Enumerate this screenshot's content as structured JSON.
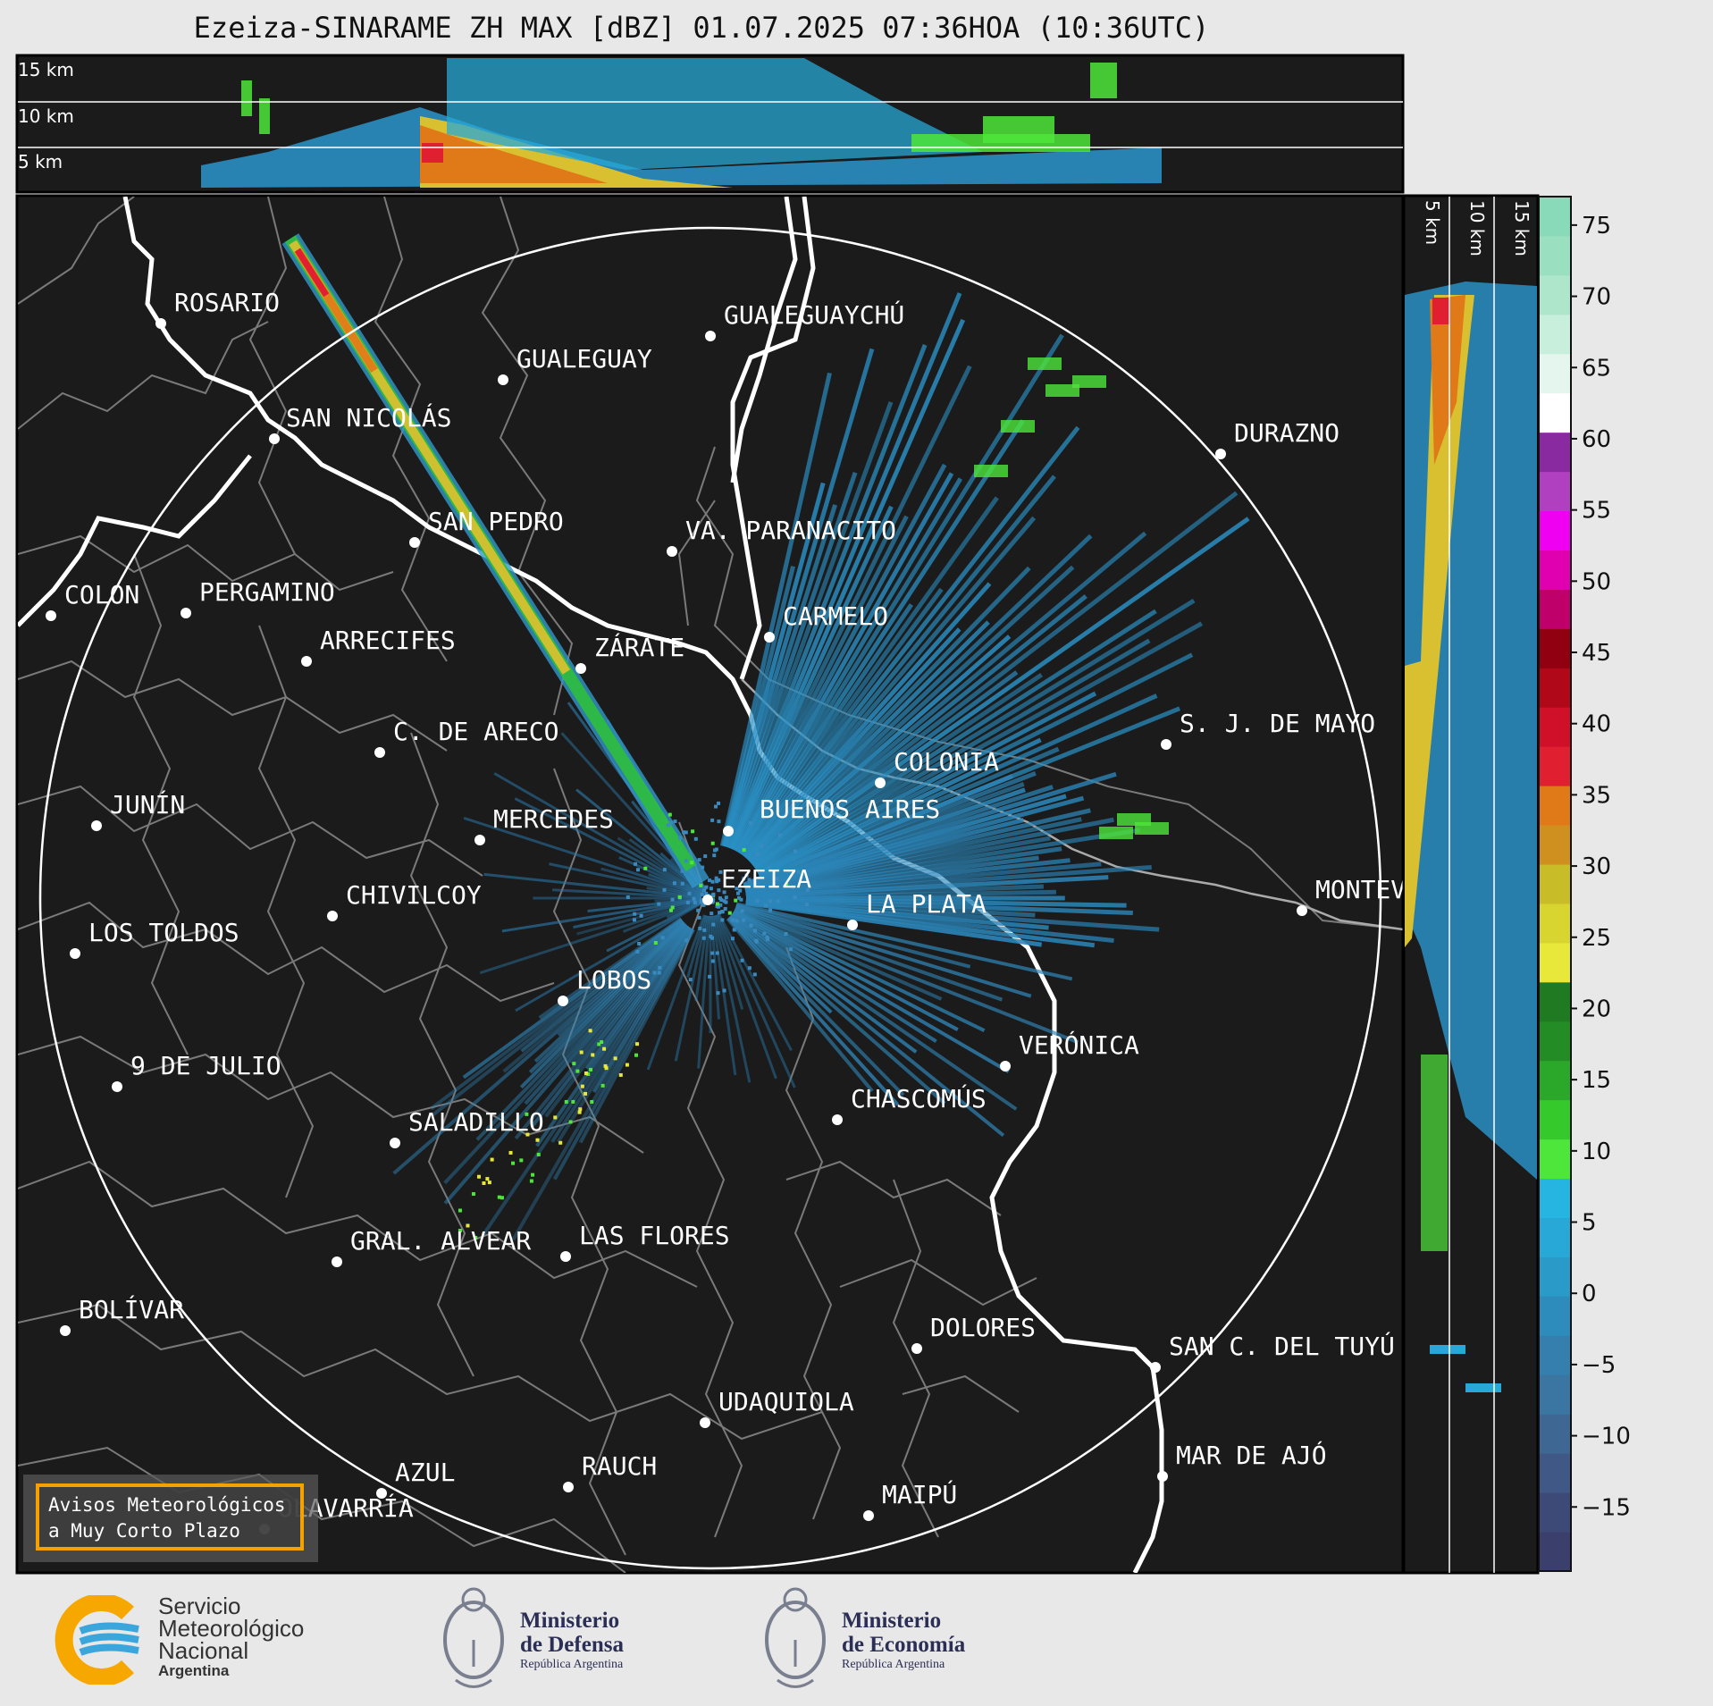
{
  "title": "Ezeiza-SINARAME ZH MAX [dBZ] 01.07.2025 07:36HOA (10:36UTC)",
  "height_labels": [
    "15 km",
    "10 km",
    "5 km"
  ],
  "side_height_labels": [
    "5 km",
    "10 km",
    "15 km"
  ],
  "colorbar": {
    "ticks": [
      "75",
      "70",
      "65",
      "60",
      "55",
      "50",
      "45",
      "40",
      "35",
      "30",
      "25",
      "20",
      "15",
      "10",
      "5",
      "0",
      "−5",
      "−10",
      "−15"
    ],
    "colors": [
      "#3a3f6b",
      "#3d4a78",
      "#405886",
      "#3f6794",
      "#3b76a2",
      "#357fae",
      "#2e8cbc",
      "#2a9ac8",
      "#27a8d6",
      "#25b5e0",
      "#4ee63a",
      "#35c92c",
      "#2ba82a",
      "#238c25",
      "#1f7a22",
      "#e8e83a",
      "#d8d430",
      "#c8bc28",
      "#d09020",
      "#e07a18",
      "#e02030",
      "#d01028",
      "#b00818",
      "#900010",
      "#c0006a",
      "#e000b0",
      "#f000f0",
      "#b040c0",
      "#8a2aa0",
      "#ffffff",
      "#e4f6ee",
      "#c8eedc",
      "#aee6cc",
      "#9ae0c0",
      "#88dab8"
    ]
  },
  "cities": [
    {
      "name": "ROSARIO"
    },
    {
      "name": "GUALEGUAYCHÚ"
    },
    {
      "name": "GUALEGUAY"
    },
    {
      "name": "SAN NICOLÁS"
    },
    {
      "name": "DURAZNO"
    },
    {
      "name": "SAN PEDRO"
    },
    {
      "name": "VA. PARANACITO"
    },
    {
      "name": "COLON"
    },
    {
      "name": "PERGAMINO"
    },
    {
      "name": "CARMELO"
    },
    {
      "name": "ARRECIFES"
    },
    {
      "name": "ZÁRATE"
    },
    {
      "name": "S. J. DE MAYO"
    },
    {
      "name": "C. DE ARECO"
    },
    {
      "name": "COLONIA"
    },
    {
      "name": "JUNÍN"
    },
    {
      "name": "BUENOS AIRES"
    },
    {
      "name": "MERCEDES"
    },
    {
      "name": "EZEIZA"
    },
    {
      "name": "MONTEV"
    },
    {
      "name": "CHIVILCOY"
    },
    {
      "name": "LA PLATA"
    },
    {
      "name": "LOS TOLDOS"
    },
    {
      "name": "LOBOS"
    },
    {
      "name": "VERÓNICA"
    },
    {
      "name": "9 DE JULIO"
    },
    {
      "name": "CHASCOMÚS"
    },
    {
      "name": "SALADILLO"
    },
    {
      "name": "GRAL. ALVEAR"
    },
    {
      "name": "LAS FLORES"
    },
    {
      "name": "BOLÍVAR"
    },
    {
      "name": "DOLORES"
    },
    {
      "name": "SAN C. DEL TUYÚ"
    },
    {
      "name": "UDAQUIOLA"
    },
    {
      "name": "MAR DE AJÓ"
    },
    {
      "name": "RAUCH"
    },
    {
      "name": "AZUL"
    },
    {
      "name": "OLAVARRÍA"
    },
    {
      "name": "MAIPÚ"
    }
  ],
  "avisos": {
    "line1": "Avisos Meteorológicos",
    "line2": "a Muy Corto Plazo"
  },
  "logos": {
    "smn": [
      "Servicio",
      "Meteorológico",
      "Nacional",
      "Argentina"
    ],
    "defensa": [
      "Ministerio",
      "de Defensa",
      "República Argentina"
    ],
    "economia": [
      "Ministerio",
      "de Economía",
      "República Argentina"
    ]
  }
}
